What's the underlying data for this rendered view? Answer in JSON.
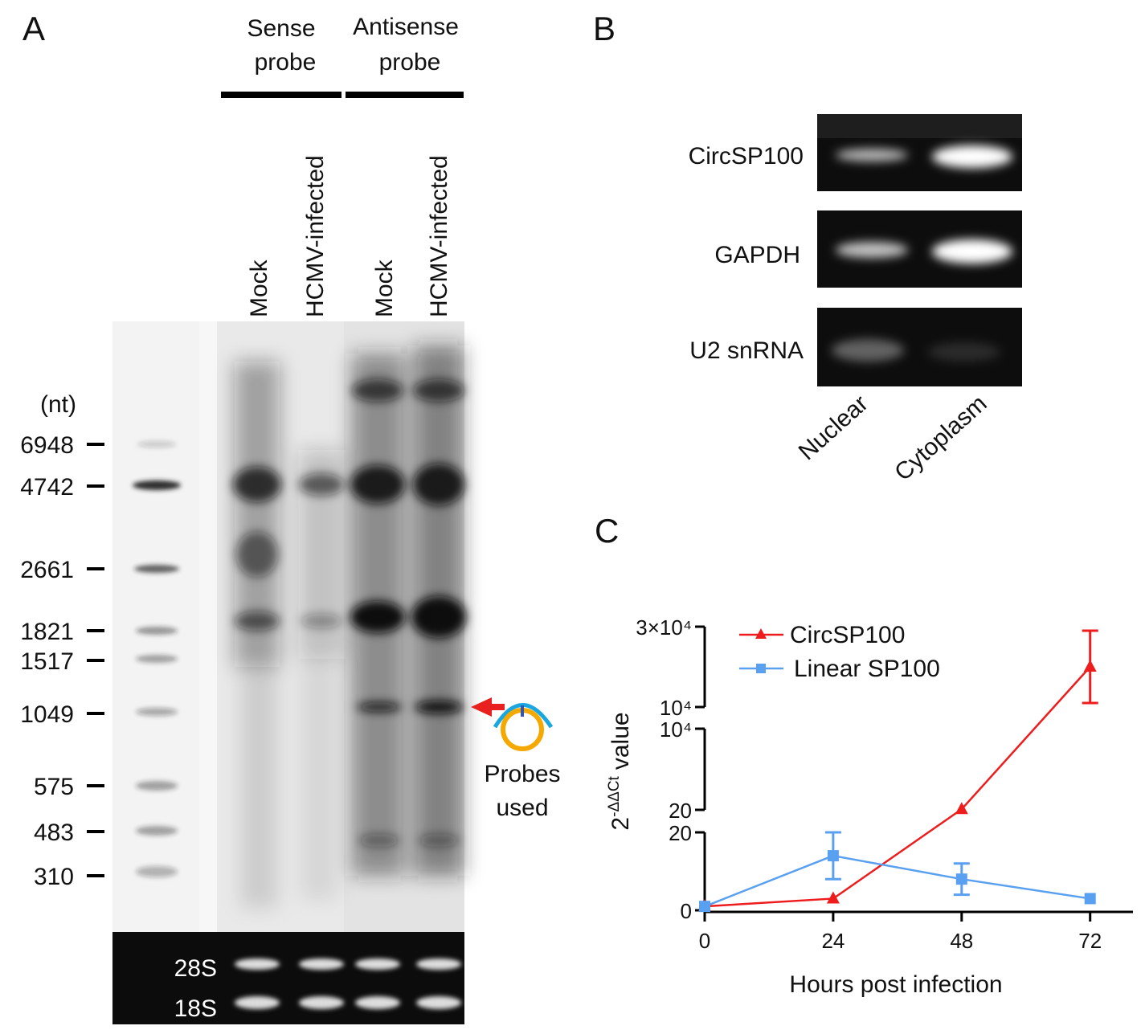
{
  "panel_a": {
    "panel_label": "A",
    "probe_groups": [
      {
        "title_lines": [
          "Sense",
          "probe"
        ]
      },
      {
        "title_lines": [
          "Antisense",
          "probe"
        ]
      }
    ],
    "lanes": [
      "Mock",
      "HCMV-infected",
      "Mock",
      "HCMV-infected"
    ],
    "size_unit": "(nt)",
    "size_markers": [
      6948,
      4742,
      2661,
      1821,
      1517,
      1049,
      575,
      483,
      310
    ],
    "rrna": [
      "28S",
      "18S"
    ],
    "probe_note_lines": [
      "Probes",
      "used"
    ]
  },
  "panel_b": {
    "panel_label": "B",
    "targets": [
      "CircSP100",
      "GAPDH",
      "U2 snRNA"
    ],
    "fractions": [
      "Nuclear",
      "Cytoplasm"
    ]
  },
  "chart_data": {
    "type": "line",
    "panel_label": "C",
    "xlabel": "Hours post infection",
    "ylabel": {
      "base": "2",
      "exponent": "-ΔΔCt",
      "text": "value"
    },
    "x": [
      0,
      24,
      48,
      72
    ],
    "xlim": [
      0,
      80
    ],
    "xticks": [
      0,
      24,
      48,
      72
    ],
    "y_segments": [
      {
        "ylim": [
          0,
          20
        ],
        "yticks": [
          0,
          20
        ]
      },
      {
        "ylim": [
          20,
          10000
        ],
        "yticks": [
          20,
          {
            "value": 10000,
            "label": "10⁴"
          }
        ]
      },
      {
        "ylim": [
          10000,
          30000
        ],
        "yticks": [
          {
            "value": 10000,
            "label": "10⁴"
          },
          {
            "value": 30000,
            "label": "3×10⁴"
          }
        ]
      }
    ],
    "series": [
      {
        "name": "CircSP100",
        "color": "#ee1c1c",
        "marker": "triangle",
        "values": [
          1,
          3,
          100,
          20000
        ],
        "errors": [
          null,
          null,
          null,
          9000
        ]
      },
      {
        "name": "Linear SP100",
        "color": "#5aa0f0",
        "marker": "square",
        "values": [
          1,
          14,
          8,
          3
        ],
        "errors": [
          null,
          6,
          4,
          null
        ]
      }
    ]
  }
}
